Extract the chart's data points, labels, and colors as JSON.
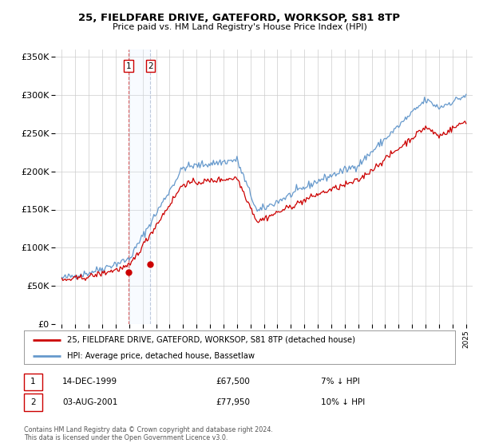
{
  "title": "25, FIELDFARE DRIVE, GATEFORD, WORKSOP, S81 8TP",
  "subtitle": "Price paid vs. HM Land Registry's House Price Index (HPI)",
  "legend_line1": "25, FIELDFARE DRIVE, GATEFORD, WORKSOP, S81 8TP (detached house)",
  "legend_line2": "HPI: Average price, detached house, Bassetlaw",
  "sale1_date": "14-DEC-1999",
  "sale1_price": "£67,500",
  "sale1_hpi": "7% ↓ HPI",
  "sale2_date": "03-AUG-2001",
  "sale2_price": "£77,950",
  "sale2_hpi": "10% ↓ HPI",
  "footnote": "Contains HM Land Registry data © Crown copyright and database right 2024.\nThis data is licensed under the Open Government Licence v3.0.",
  "sale1_year": 1999.96,
  "sale1_value": 67500,
  "sale2_year": 2001.58,
  "sale2_value": 77950,
  "price_color": "#cc0000",
  "hpi_color": "#6699cc",
  "background_color": "#ffffff",
  "grid_color": "#cccccc",
  "shade_color": "#ddeeff",
  "ylim": [
    0,
    360000
  ],
  "xlim_start": 1994.5,
  "xlim_end": 2025.5,
  "yticks": [
    0,
    50000,
    100000,
    150000,
    200000,
    250000,
    300000,
    350000
  ],
  "ytick_labels": [
    "£0",
    "£50K",
    "£100K",
    "£150K",
    "£200K",
    "£250K",
    "£300K",
    "£350K"
  ]
}
